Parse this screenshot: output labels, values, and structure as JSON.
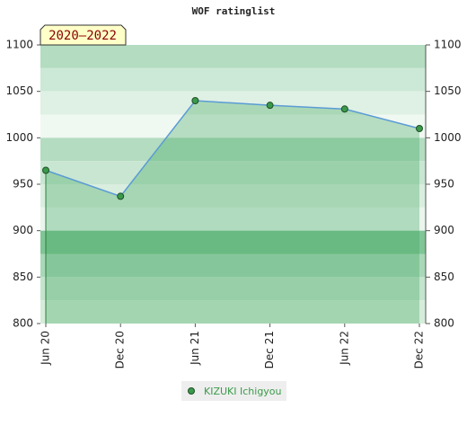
{
  "chart_data": {
    "type": "line",
    "title": "WOF ratinglist",
    "annotation": "2020–2022",
    "categories": [
      "Jun 20",
      "Dec 20",
      "Jun 21",
      "Dec 21",
      "Jun 22",
      "Dec 22"
    ],
    "series": [
      {
        "name": "KIZUKI Ichigyou",
        "color": "#5b9bd5",
        "marker_color": "#3a9a4a",
        "values": [
          965,
          937,
          1040,
          1035,
          1031,
          1010
        ]
      }
    ],
    "ylim": [
      800,
      1100
    ],
    "yticks": [
      800,
      850,
      900,
      950,
      1000,
      1050,
      1100
    ]
  }
}
